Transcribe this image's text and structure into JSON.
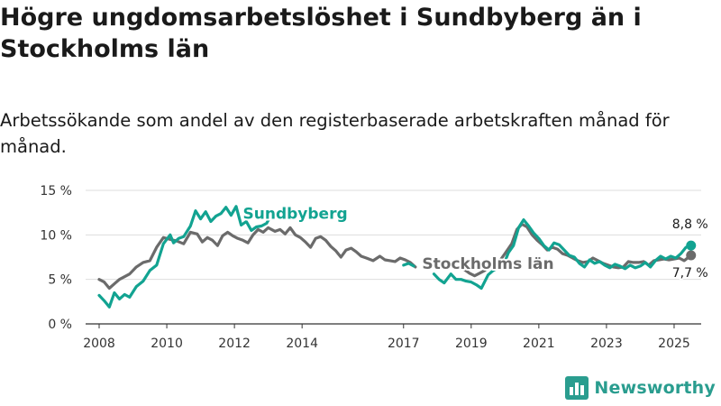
{
  "header": {
    "title": "Högre ungdomsarbetslöshet i Sundbyberg än i Stockholms län",
    "subtitle": "Arbetssökande som andel av den registerbaserade arbetskraften månad för månad."
  },
  "brand": {
    "name": "Newsworthy",
    "logo_icon": "bar-chart-logo-icon",
    "color": "#2a9d8f"
  },
  "chart_data": {
    "type": "line",
    "xlabel": "",
    "ylabel": "",
    "xlim": [
      2007.6,
      2025.8
    ],
    "ylim": [
      0,
      15
    ],
    "y_ticks": [
      0,
      5,
      10,
      15
    ],
    "y_tick_labels": [
      "0 %",
      "5 %",
      "10 %",
      "15 %"
    ],
    "x_ticks": [
      2008,
      2010,
      2012,
      2014,
      2017,
      2019,
      2021,
      2023,
      2025
    ],
    "x_tick_labels": [
      "2008",
      "2010",
      "2012",
      "2014",
      "2017",
      "2019",
      "2021",
      "2023",
      "2025"
    ],
    "grid": true,
    "series": [
      {
        "name": "Sundbyberg",
        "color": "#12a391",
        "end_label": "8,8 %",
        "points": [
          [
            2008.0,
            3.2
          ],
          [
            2008.15,
            2.6
          ],
          [
            2008.3,
            1.9
          ],
          [
            2008.45,
            3.5
          ],
          [
            2008.6,
            2.8
          ],
          [
            2008.75,
            3.3
          ],
          [
            2008.9,
            3.0
          ],
          [
            2009.1,
            4.2
          ],
          [
            2009.3,
            4.8
          ],
          [
            2009.5,
            6.0
          ],
          [
            2009.7,
            6.6
          ],
          [
            2009.9,
            9.0
          ],
          [
            2010.1,
            10.0
          ],
          [
            2010.2,
            9.1
          ],
          [
            2010.35,
            9.6
          ],
          [
            2010.5,
            9.8
          ],
          [
            2010.7,
            11.0
          ],
          [
            2010.85,
            12.7
          ],
          [
            2011.0,
            11.8
          ],
          [
            2011.15,
            12.6
          ],
          [
            2011.3,
            11.5
          ],
          [
            2011.45,
            12.1
          ],
          [
            2011.6,
            12.4
          ],
          [
            2011.75,
            13.1
          ],
          [
            2011.9,
            12.2
          ],
          [
            2012.05,
            13.2
          ],
          [
            2012.2,
            11.1
          ],
          [
            2012.35,
            11.5
          ],
          [
            2012.5,
            10.5
          ],
          [
            2012.65,
            10.9
          ],
          [
            2012.8,
            11.0
          ],
          [
            2012.95,
            11.3
          ],
          [
            2013.1,
            12.3
          ],
          [
            2013.25,
            12.0
          ],
          [
            2017.0,
            6.6
          ],
          [
            2017.15,
            6.8
          ],
          [
            2017.3,
            6.5
          ],
          [
            2017.9,
            5.6
          ],
          [
            2018.05,
            5.0
          ],
          [
            2018.2,
            4.6
          ],
          [
            2018.4,
            5.6
          ],
          [
            2018.55,
            5.0
          ],
          [
            2018.7,
            5.0
          ],
          [
            2018.85,
            4.8
          ],
          [
            2019.0,
            4.7
          ],
          [
            2019.15,
            4.4
          ],
          [
            2019.3,
            4.0
          ],
          [
            2019.5,
            5.5
          ],
          [
            2019.65,
            6.0
          ],
          [
            2019.8,
            6.3
          ],
          [
            2020.0,
            7.0
          ],
          [
            2020.1,
            8.0
          ],
          [
            2020.25,
            8.8
          ],
          [
            2020.4,
            10.8
          ],
          [
            2020.55,
            11.7
          ],
          [
            2020.7,
            11.0
          ],
          [
            2020.85,
            10.2
          ],
          [
            2021.0,
            9.6
          ],
          [
            2021.15,
            8.8
          ],
          [
            2021.3,
            8.3
          ],
          [
            2021.45,
            9.1
          ],
          [
            2021.6,
            8.9
          ],
          [
            2021.75,
            8.3
          ],
          [
            2021.9,
            7.7
          ],
          [
            2022.05,
            7.5
          ],
          [
            2022.2,
            6.8
          ],
          [
            2022.35,
            6.4
          ],
          [
            2022.5,
            7.2
          ],
          [
            2022.65,
            6.8
          ],
          [
            2022.8,
            7.0
          ],
          [
            2022.95,
            6.6
          ],
          [
            2023.1,
            6.3
          ],
          [
            2023.25,
            6.7
          ],
          [
            2023.4,
            6.5
          ],
          [
            2023.55,
            6.2
          ],
          [
            2023.7,
            6.6
          ],
          [
            2023.85,
            6.3
          ],
          [
            2024.0,
            6.5
          ],
          [
            2024.15,
            6.9
          ],
          [
            2024.3,
            6.4
          ],
          [
            2024.45,
            7.1
          ],
          [
            2024.6,
            7.6
          ],
          [
            2024.75,
            7.3
          ],
          [
            2024.9,
            7.6
          ],
          [
            2025.05,
            7.4
          ],
          [
            2025.2,
            7.9
          ],
          [
            2025.35,
            8.6
          ],
          [
            2025.5,
            8.8
          ]
        ]
      },
      {
        "name": "Stockholms län",
        "color": "#6b6b6b",
        "end_label": "7,7 %",
        "points": [
          [
            2008.0,
            5.0
          ],
          [
            2008.15,
            4.7
          ],
          [
            2008.3,
            4.0
          ],
          [
            2008.45,
            4.5
          ],
          [
            2008.6,
            5.0
          ],
          [
            2008.75,
            5.3
          ],
          [
            2008.9,
            5.6
          ],
          [
            2009.1,
            6.4
          ],
          [
            2009.3,
            6.9
          ],
          [
            2009.5,
            7.1
          ],
          [
            2009.7,
            8.6
          ],
          [
            2009.9,
            9.7
          ],
          [
            2010.1,
            9.5
          ],
          [
            2010.3,
            9.3
          ],
          [
            2010.5,
            9.0
          ],
          [
            2010.7,
            10.3
          ],
          [
            2010.9,
            10.1
          ],
          [
            2011.05,
            9.2
          ],
          [
            2011.2,
            9.7
          ],
          [
            2011.35,
            9.4
          ],
          [
            2011.5,
            8.8
          ],
          [
            2011.65,
            9.9
          ],
          [
            2011.8,
            10.3
          ],
          [
            2011.95,
            9.9
          ],
          [
            2012.1,
            9.6
          ],
          [
            2012.25,
            9.4
          ],
          [
            2012.4,
            9.1
          ],
          [
            2012.55,
            10.0
          ],
          [
            2012.7,
            10.6
          ],
          [
            2012.85,
            10.3
          ],
          [
            2013.0,
            10.8
          ],
          [
            2013.2,
            10.4
          ],
          [
            2013.35,
            10.6
          ],
          [
            2013.5,
            10.1
          ],
          [
            2013.65,
            10.8
          ],
          [
            2013.8,
            10.0
          ],
          [
            2013.95,
            9.7
          ],
          [
            2014.1,
            9.2
          ],
          [
            2014.25,
            8.6
          ],
          [
            2014.4,
            9.6
          ],
          [
            2014.55,
            9.8
          ],
          [
            2014.7,
            9.4
          ],
          [
            2014.85,
            8.7
          ],
          [
            2015.0,
            8.2
          ],
          [
            2015.15,
            7.5
          ],
          [
            2015.3,
            8.3
          ],
          [
            2015.45,
            8.5
          ],
          [
            2015.6,
            8.1
          ],
          [
            2015.75,
            7.6
          ],
          [
            2015.9,
            7.4
          ],
          [
            2016.1,
            7.1
          ],
          [
            2016.3,
            7.6
          ],
          [
            2016.45,
            7.2
          ],
          [
            2016.6,
            7.1
          ],
          [
            2016.75,
            7.0
          ],
          [
            2016.9,
            7.4
          ],
          [
            2017.05,
            7.2
          ],
          [
            2017.2,
            6.9
          ],
          [
            2017.35,
            6.4
          ],
          [
            2018.8,
            6.1
          ],
          [
            2018.95,
            5.7
          ],
          [
            2019.1,
            5.4
          ],
          [
            2019.25,
            5.7
          ],
          [
            2019.4,
            6.0
          ],
          [
            2019.55,
            6.5
          ],
          [
            2019.7,
            7.0
          ],
          [
            2019.85,
            7.1
          ],
          [
            2020.0,
            7.9
          ],
          [
            2020.2,
            9.0
          ],
          [
            2020.35,
            10.6
          ],
          [
            2020.5,
            11.2
          ],
          [
            2020.65,
            10.9
          ],
          [
            2020.8,
            10.0
          ],
          [
            2020.95,
            9.4
          ],
          [
            2021.1,
            8.9
          ],
          [
            2021.25,
            8.3
          ],
          [
            2021.4,
            8.6
          ],
          [
            2021.55,
            8.4
          ],
          [
            2021.7,
            7.9
          ],
          [
            2021.85,
            7.7
          ],
          [
            2022.0,
            7.4
          ],
          [
            2022.15,
            7.1
          ],
          [
            2022.3,
            6.9
          ],
          [
            2022.45,
            7.0
          ],
          [
            2022.6,
            7.4
          ],
          [
            2022.75,
            7.1
          ],
          [
            2022.9,
            6.8
          ],
          [
            2023.05,
            6.6
          ],
          [
            2023.2,
            6.4
          ],
          [
            2023.35,
            6.3
          ],
          [
            2023.5,
            6.4
          ],
          [
            2023.65,
            7.0
          ],
          [
            2023.8,
            6.9
          ],
          [
            2023.95,
            6.9
          ],
          [
            2024.1,
            7.0
          ],
          [
            2024.25,
            6.6
          ],
          [
            2024.4,
            7.1
          ],
          [
            2024.55,
            7.2
          ],
          [
            2024.7,
            7.3
          ],
          [
            2024.85,
            7.2
          ],
          [
            2025.0,
            7.3
          ],
          [
            2025.15,
            7.4
          ],
          [
            2025.3,
            7.1
          ],
          [
            2025.5,
            7.7
          ]
        ]
      }
    ]
  }
}
